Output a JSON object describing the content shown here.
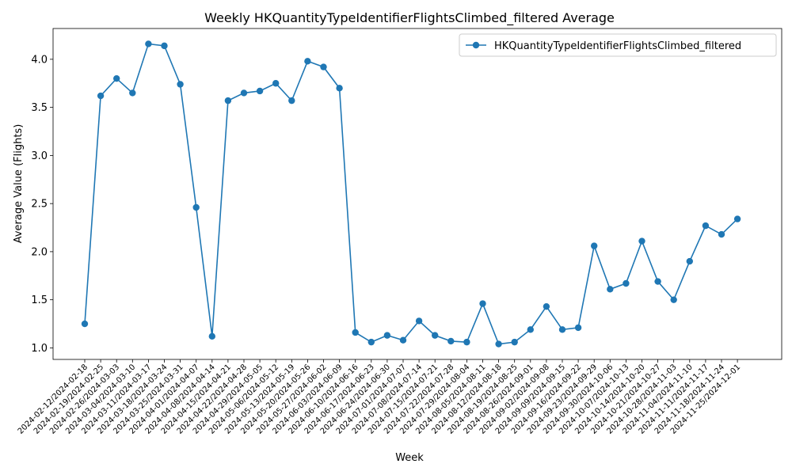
{
  "chart_data": {
    "type": "line",
    "title": "Weekly HKQuantityTypeIdentifierFlightsClimbed_filtered Average",
    "xlabel": "Week",
    "ylabel": "Average Value (Flights)",
    "ylim": [
      0.88,
      4.32
    ],
    "yticks": [
      "1.0",
      "1.5",
      "2.0",
      "2.5",
      "3.0",
      "3.5",
      "4.0"
    ],
    "grid": false,
    "legend_position": "top-right",
    "categories": [
      "2024-02-12/2024-02-18",
      "2024-02-19/2024-02-25",
      "2024-02-26/2024-03-03",
      "2024-03-04/2024-03-10",
      "2024-03-11/2024-03-17",
      "2024-03-18/2024-03-24",
      "2024-03-25/2024-03-31",
      "2024-04-01/2024-04-07",
      "2024-04-08/2024-04-14",
      "2024-04-15/2024-04-21",
      "2024-04-22/2024-04-28",
      "2024-04-29/2024-05-05",
      "2024-05-06/2024-05-12",
      "2024-05-13/2024-05-19",
      "2024-05-20/2024-05-26",
      "2024-05-27/2024-06-02",
      "2024-06-03/2024-06-09",
      "2024-06-10/2024-06-16",
      "2024-06-17/2024-06-23",
      "2024-06-24/2024-06-30",
      "2024-07-01/2024-07-07",
      "2024-07-08/2024-07-14",
      "2024-07-15/2024-07-21",
      "2024-07-22/2024-07-28",
      "2024-07-29/2024-08-04",
      "2024-08-05/2024-08-11",
      "2024-08-12/2024-08-18",
      "2024-08-19/2024-08-25",
      "2024-08-26/2024-09-01",
      "2024-09-02/2024-09-08",
      "2024-09-09/2024-09-15",
      "2024-09-16/2024-09-22",
      "2024-09-23/2024-09-29",
      "2024-09-30/2024-10-06",
      "2024-10-07/2024-10-13",
      "2024-10-14/2024-10-20",
      "2024-10-21/2024-10-27",
      "2024-10-28/2024-11-03",
      "2024-11-04/2024-11-10",
      "2024-11-11/2024-11-17",
      "2024-11-18/2024-11-24",
      "2024-11-25/2024-12-01"
    ],
    "series": [
      {
        "name": "HKQuantityTypeIdentifierFlightsClimbed_filtered",
        "color": "#1f77b4",
        "marker": "circle",
        "values": [
          1.25,
          3.62,
          3.8,
          3.65,
          4.16,
          4.14,
          3.74,
          2.46,
          1.12,
          3.57,
          3.65,
          3.67,
          3.75,
          3.57,
          3.98,
          3.92,
          3.7,
          1.16,
          1.06,
          1.13,
          1.08,
          1.28,
          1.13,
          1.07,
          1.06,
          1.46,
          1.04,
          1.06,
          1.19,
          1.43,
          1.19,
          1.21,
          2.06,
          1.61,
          1.67,
          2.11,
          1.69,
          1.5,
          1.9,
          2.27,
          2.18,
          2.34
        ]
      }
    ]
  }
}
